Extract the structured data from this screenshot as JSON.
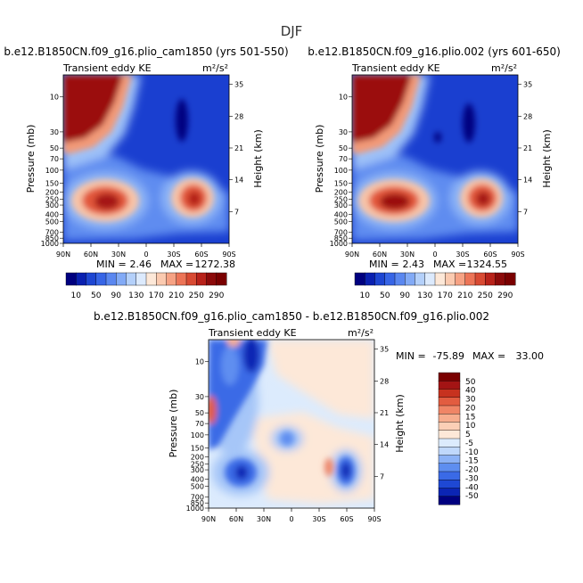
{
  "figure": {
    "title": "DJF"
  },
  "colors": {
    "panel_levels": [
      "#00007f",
      "#0a20b0",
      "#1e46d2",
      "#3765e6",
      "#5a87f0",
      "#82aaf6",
      "#b4d0fa",
      "#dceafd",
      "#fde8d8",
      "#fbcab0",
      "#f6a284",
      "#ec7457",
      "#d84a33",
      "#b8221a",
      "#8c0a0a",
      "#7a0000"
    ],
    "diff_levels": [
      "#00007f",
      "#0b25b4",
      "#1e48d4",
      "#3a6ae6",
      "#5e8ef0",
      "#8cb2f6",
      "#c0d8fb",
      "#dcebfd",
      "#fde8d8",
      "#fbcfb6",
      "#f7ad8e",
      "#f08566",
      "#e25c40",
      "#c7321f",
      "#a31414",
      "#7a0000"
    ]
  },
  "chart_data": [
    {
      "type": "heatmap",
      "title": "b.e12.B1850CN.f09_g16.plio_cam1850 (yrs 501-550)",
      "left_label": "Transient eddy KE",
      "right_label": "m²/s²",
      "xlabel": "",
      "ylabel": "Pressure (mb)",
      "ylabel_right": "Height (km)",
      "x_ticks": [
        "90N",
        "60N",
        "30N",
        "0",
        "30S",
        "60S",
        "90S"
      ],
      "y_ticks": [
        "10",
        "30",
        "50",
        "70",
        "100",
        "150",
        "200",
        "250",
        "300",
        "400",
        "500",
        "700",
        "850",
        "1000"
      ],
      "y_ticks_right": [
        "35",
        "28",
        "21",
        "14",
        "7"
      ],
      "ylim": [
        1000,
        5
      ],
      "y_scale": "log",
      "min": 2.46,
      "max": 1272.38,
      "min_label": "MIN =",
      "max_label": "MAX =",
      "min_text": "2.46",
      "max_text": "1272.38",
      "colorbar_labels": [
        "10",
        "50",
        "90",
        "130",
        "170",
        "210",
        "250",
        "290"
      ]
    },
    {
      "type": "heatmap",
      "title": "b.e12.B1850CN.f09_g16.plio.002 (yrs 601-650)",
      "left_label": "Transient eddy KE",
      "right_label": "m²/s²",
      "xlabel": "",
      "ylabel": "Pressure (mb)",
      "ylabel_right": "Height (km)",
      "x_ticks": [
        "90N",
        "60N",
        "30N",
        "0",
        "30S",
        "60S",
        "90S"
      ],
      "y_ticks": [
        "10",
        "30",
        "50",
        "70",
        "100",
        "150",
        "200",
        "250",
        "300",
        "400",
        "500",
        "700",
        "850",
        "1000"
      ],
      "y_ticks_right": [
        "35",
        "28",
        "21",
        "14",
        "7"
      ],
      "ylim": [
        1000,
        5
      ],
      "y_scale": "log",
      "min": 2.43,
      "max": 1324.55,
      "min_label": "MIN =",
      "max_label": "MAX =",
      "min_text": "2.43",
      "max_text": "1324.55",
      "colorbar_labels": [
        "10",
        "50",
        "90",
        "130",
        "170",
        "210",
        "250",
        "290"
      ]
    },
    {
      "type": "heatmap",
      "title": "b.e12.B1850CN.f09_g16.plio_cam1850 - b.e12.B1850CN.f09_g16.plio.002",
      "left_label": "Transient eddy KE",
      "right_label": "m²/s²",
      "xlabel": "",
      "ylabel": "Pressure (mb)",
      "ylabel_right": "Height (km)",
      "x_ticks": [
        "90N",
        "60N",
        "30N",
        "0",
        "30S",
        "60S",
        "90S"
      ],
      "y_ticks": [
        "10",
        "30",
        "50",
        "70",
        "100",
        "150",
        "200",
        "250",
        "300",
        "400",
        "500",
        "700",
        "850",
        "1000"
      ],
      "y_ticks_right": [
        "35",
        "28",
        "21",
        "14",
        "7"
      ],
      "ylim": [
        1000,
        5
      ],
      "y_scale": "log",
      "min": -75.89,
      "max": 33.0,
      "min_label": "MIN =",
      "max_label": "MAX =",
      "min_text": "-75.89",
      "max_text": "33.00",
      "colorbar_labels": [
        "50",
        "40",
        "30",
        "20",
        "15",
        "10",
        "5",
        "-5",
        "-10",
        "-15",
        "-20",
        "-30",
        "-40",
        "-50"
      ]
    }
  ]
}
